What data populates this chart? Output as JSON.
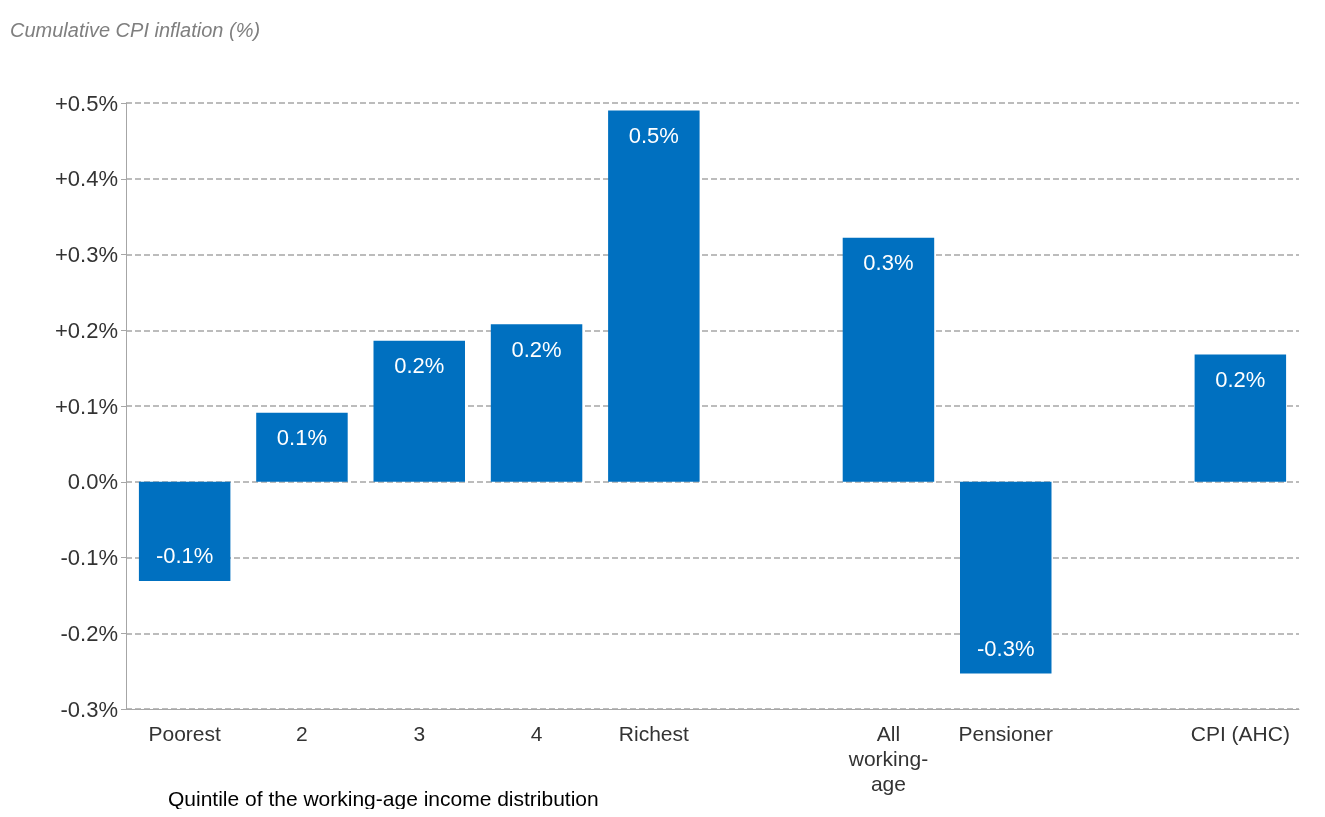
{
  "chart_data": {
    "type": "bar",
    "ylabel": "Cumulative CPI inflation (%)",
    "xlabel": "Quintile of the working-age income distribution",
    "categories": [
      "Poorest",
      "2",
      "3",
      "4",
      "Richest",
      null,
      "All working-age",
      "Pensioner",
      null,
      "CPI (AHC)"
    ],
    "values": [
      -0.131,
      0.091,
      0.186,
      0.208,
      0.49,
      null,
      0.322,
      -0.253,
      null,
      0.168
    ],
    "value_labels": [
      "-0.1%",
      "0.1%",
      "0.2%",
      "0.2%",
      "0.5%",
      null,
      "0.3%",
      "-0.3%",
      null,
      "0.2%"
    ],
    "color": "#0070c0",
    "ylim": [
      -0.3,
      0.5
    ],
    "yticks": [
      {
        "value": -0.3,
        "label": "-0.3%"
      },
      {
        "value": -0.2,
        "label": "-0.2%"
      },
      {
        "value": -0.1,
        "label": "-0.1%"
      },
      {
        "value": 0,
        "label": "0.0%"
      },
      {
        "value": 0.1,
        "label": "+0.1%"
      },
      {
        "value": 0.2,
        "label": "+0.2%"
      },
      {
        "value": 0.3,
        "label": "+0.3%"
      },
      {
        "value": 0.4,
        "label": "+0.4%"
      },
      {
        "value": 0.5,
        "label": "+0.5%"
      }
    ],
    "grid": "y"
  }
}
